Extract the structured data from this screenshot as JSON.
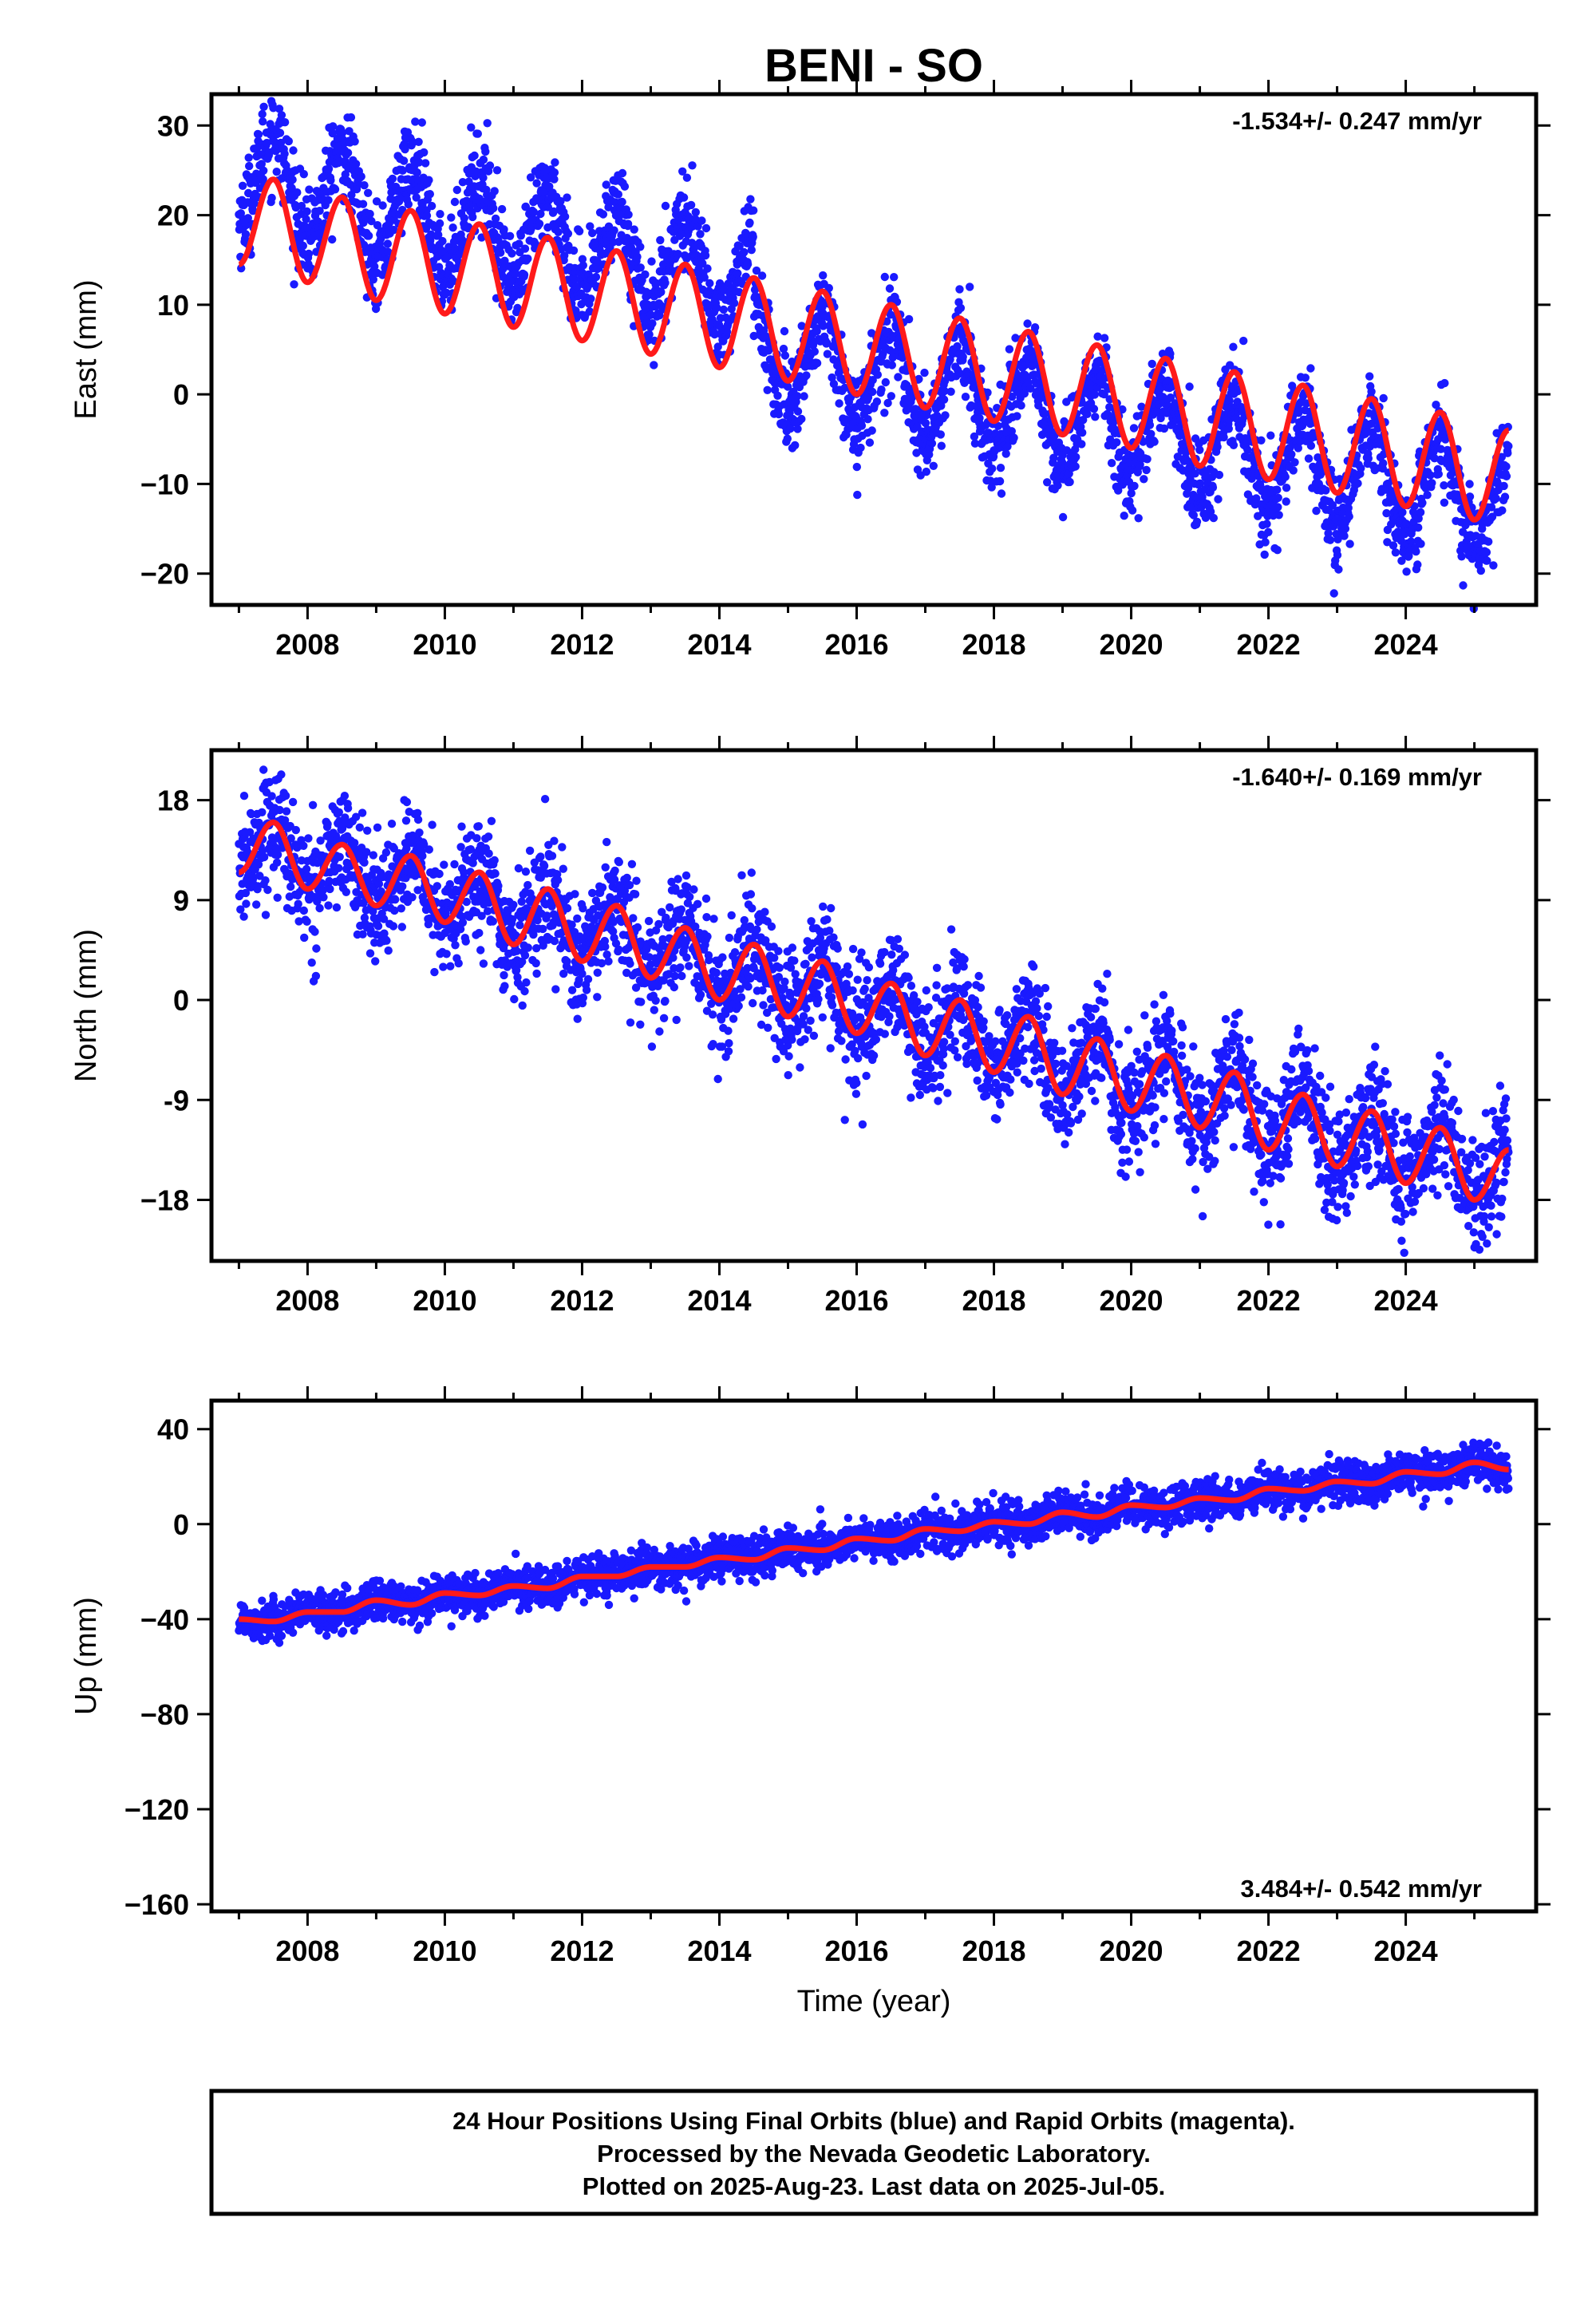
{
  "title": "BENI - SO",
  "colors": {
    "final_orbits": "#1a1aff",
    "model": "#ff1a1a"
  },
  "chart_data": [
    {
      "type": "scatter",
      "ylabel": "East (mm)",
      "rate": "-1.534+/- 0.247 mm/yr",
      "xlim": [
        2006.6,
        2025.9
      ],
      "ylim": [
        -23.5,
        33.5
      ],
      "xticks": [
        2008,
        2010,
        2012,
        2014,
        2016,
        2018,
        2020,
        2022,
        2024
      ],
      "xtick_labels": [
        "2008",
        "2010",
        "2012",
        "2014",
        "2016",
        "2018",
        "2020",
        "2022",
        "2024"
      ],
      "yticks": [
        30,
        20,
        10,
        0,
        -10,
        -20
      ],
      "ytick_labels": [
        "30",
        "20",
        "10",
        "0",
        "−10",
        "−20"
      ],
      "series": [
        {
          "values": [
            [
              2007.0,
              14.5
            ],
            [
              2007.5,
              24
            ],
            [
              2008.0,
              12.5
            ],
            [
              2008.5,
              22
            ],
            [
              2009.0,
              10.5
            ],
            [
              2009.5,
              20.5
            ],
            [
              2010.0,
              9
            ],
            [
              2010.5,
              19
            ],
            [
              2011.0,
              7.5
            ],
            [
              2011.5,
              17.5
            ],
            [
              2012.0,
              6
            ],
            [
              2012.5,
              16
            ],
            [
              2013.0,
              4.5
            ],
            [
              2013.5,
              14.5
            ],
            [
              2014.0,
              3
            ],
            [
              2014.5,
              13
            ],
            [
              2015.0,
              1.5
            ],
            [
              2015.5,
              11.5
            ],
            [
              2016.0,
              0
            ],
            [
              2016.5,
              10
            ],
            [
              2017.0,
              -1.5
            ],
            [
              2017.5,
              8.5
            ],
            [
              2018.0,
              -3
            ],
            [
              2018.5,
              7
            ],
            [
              2019.0,
              -4.5
            ],
            [
              2019.5,
              5.5
            ],
            [
              2020.0,
              -6
            ],
            [
              2020.5,
              4
            ],
            [
              2021.0,
              -8
            ],
            [
              2021.5,
              2.5
            ],
            [
              2022.0,
              -9.5
            ],
            [
              2022.5,
              1
            ],
            [
              2023.0,
              -11
            ],
            [
              2023.5,
              -0.5
            ],
            [
              2024.0,
              -12.5
            ],
            [
              2024.5,
              -2
            ],
            [
              2025.0,
              -14
            ],
            [
              2025.5,
              -4
            ]
          ]
        }
      ]
    },
    {
      "type": "scatter",
      "ylabel": "North (mm)",
      "rate": "-1.640+/- 0.169 mm/yr",
      "xlim": [
        2006.6,
        2025.9
      ],
      "ylim": [
        -23.5,
        22.5
      ],
      "xticks": [
        2008,
        2010,
        2012,
        2014,
        2016,
        2018,
        2020,
        2022,
        2024
      ],
      "xtick_labels": [
        "2008",
        "2010",
        "2012",
        "2014",
        "2016",
        "2018",
        "2020",
        "2022",
        "2024"
      ],
      "yticks": [
        18,
        9,
        0,
        -9,
        -18
      ],
      "ytick_labels": [
        "18",
        "9",
        "0",
        "-9",
        "−18"
      ],
      "series": [
        {
          "values": [
            [
              2007.0,
              11.5
            ],
            [
              2007.5,
              16
            ],
            [
              2008.0,
              10
            ],
            [
              2008.5,
              14
            ],
            [
              2009.0,
              8.5
            ],
            [
              2009.5,
              13
            ],
            [
              2010.0,
              7
            ],
            [
              2010.5,
              11.5
            ],
            [
              2011.0,
              5
            ],
            [
              2011.5,
              10
            ],
            [
              2012.0,
              3.5
            ],
            [
              2012.5,
              8.5
            ],
            [
              2013.0,
              2
            ],
            [
              2013.5,
              6.5
            ],
            [
              2014.0,
              0
            ],
            [
              2014.5,
              5
            ],
            [
              2015.0,
              -1.5
            ],
            [
              2015.5,
              3.5
            ],
            [
              2016.0,
              -3
            ],
            [
              2016.5,
              1.5
            ],
            [
              2017.0,
              -5
            ],
            [
              2017.5,
              0
            ],
            [
              2018.0,
              -6.5
            ],
            [
              2018.5,
              -1.5
            ],
            [
              2019.0,
              -8.5
            ],
            [
              2019.5,
              -3.5
            ],
            [
              2020.0,
              -10
            ],
            [
              2020.5,
              -5
            ],
            [
              2021.0,
              -11.5
            ],
            [
              2021.5,
              -6.5
            ],
            [
              2022.0,
              -13.5
            ],
            [
              2022.5,
              -8.5
            ],
            [
              2023.0,
              -15
            ],
            [
              2023.5,
              -10
            ],
            [
              2024.0,
              -16.5
            ],
            [
              2024.5,
              -11.5
            ],
            [
              2025.0,
              -18
            ],
            [
              2025.5,
              -13.5
            ]
          ]
        }
      ]
    },
    {
      "type": "scatter",
      "ylabel": "Up (mm)",
      "rate": "3.484+/- 0.542 mm/yr",
      "xlim": [
        2006.6,
        2025.9
      ],
      "ylim": [
        -163,
        52
      ],
      "xticks": [
        2008,
        2010,
        2012,
        2014,
        2016,
        2018,
        2020,
        2022,
        2024
      ],
      "xtick_labels": [
        "2008",
        "2010",
        "2012",
        "2014",
        "2016",
        "2018",
        "2020",
        "2022",
        "2024"
      ],
      "yticks": [
        40,
        0,
        -40,
        -80,
        -120,
        -160
      ],
      "ytick_labels": [
        "40",
        "0",
        "−40",
        "−80",
        "−120",
        "−160"
      ],
      "xlabel": "Time (year)",
      "series": [
        {
          "values": [
            [
              2007.0,
              -40
            ],
            [
              2007.5,
              -41
            ],
            [
              2008.0,
              -37
            ],
            [
              2008.5,
              -37
            ],
            [
              2009.0,
              -32
            ],
            [
              2009.5,
              -34
            ],
            [
              2010.0,
              -29
            ],
            [
              2010.5,
              -30
            ],
            [
              2011.0,
              -26
            ],
            [
              2011.5,
              -27
            ],
            [
              2012.0,
              -22
            ],
            [
              2012.5,
              -22
            ],
            [
              2013.0,
              -18
            ],
            [
              2013.5,
              -18
            ],
            [
              2014.0,
              -14
            ],
            [
              2014.5,
              -15
            ],
            [
              2015.0,
              -10
            ],
            [
              2015.5,
              -11
            ],
            [
              2016.0,
              -6
            ],
            [
              2016.5,
              -7
            ],
            [
              2017.0,
              -2
            ],
            [
              2017.5,
              -3
            ],
            [
              2018.0,
              1
            ],
            [
              2018.5,
              0
            ],
            [
              2019.0,
              5
            ],
            [
              2019.5,
              3
            ],
            [
              2020.0,
              8
            ],
            [
              2020.5,
              7
            ],
            [
              2021.0,
              11
            ],
            [
              2021.5,
              10
            ],
            [
              2022.0,
              15
            ],
            [
              2022.5,
              14
            ],
            [
              2023.0,
              18
            ],
            [
              2023.5,
              17
            ],
            [
              2024.0,
              22
            ],
            [
              2024.5,
              21
            ],
            [
              2025.0,
              26
            ],
            [
              2025.5,
              23
            ]
          ]
        }
      ]
    }
  ],
  "footer": {
    "line1": "24 Hour Positions Using Final Orbits (blue) and Rapid Orbits (magenta).",
    "line2": "Processed by the Nevada Geodetic Laboratory.",
    "line3": "Plotted on 2025-Aug-23. Last data on 2025-Jul-05."
  }
}
